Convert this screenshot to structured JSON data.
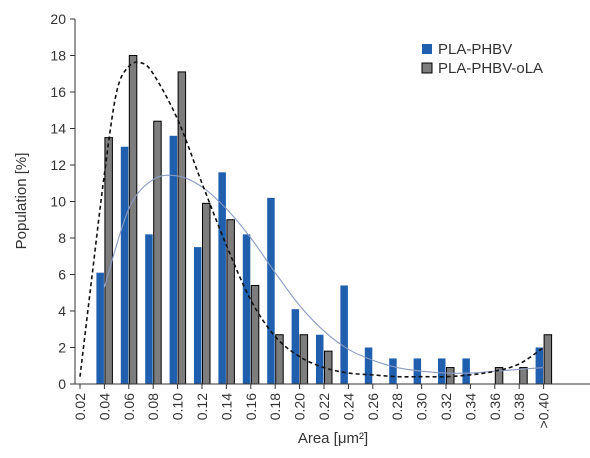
{
  "chart_data": {
    "type": "bar",
    "xlabel": "Area [μm²]",
    "ylabel": "Population [%]",
    "ylim": [
      0,
      20
    ],
    "y_ticks": [
      0,
      2,
      4,
      6,
      8,
      10,
      12,
      14,
      16,
      18,
      20
    ],
    "categories": [
      "0.02",
      "0.04",
      "0.06",
      "0.08",
      "0.10",
      "0.12",
      "0.14",
      "0.16",
      "0.18",
      "0.20",
      "0.22",
      "0.24",
      "0.26",
      "0.28",
      "0.30",
      "0.32",
      "0.34",
      "0.36",
      "0.38",
      ">0.40"
    ],
    "series": [
      {
        "name": "PLA-PHBV",
        "color": "#1f5fae",
        "values": [
          0,
          6.1,
          13.0,
          8.2,
          13.6,
          7.5,
          11.6,
          8.2,
          10.2,
          4.1,
          2.7,
          5.4,
          2.0,
          1.4,
          1.4,
          1.4,
          1.4,
          0,
          0,
          2.0
        ]
      },
      {
        "name": "PLA-PHBV-oLA",
        "color": "#7d7d7d",
        "values": [
          0,
          13.5,
          18.0,
          14.4,
          17.1,
          9.9,
          9.0,
          5.4,
          2.7,
          2.7,
          1.8,
          0,
          0,
          0,
          0,
          0.9,
          0,
          0.9,
          0.9,
          2.7
        ]
      }
    ],
    "fit_curves": [
      {
        "series": "PLA-PHBV",
        "style": "solid",
        "color": "#8a9bc4",
        "points": [
          [
            0.04,
            5.3
          ],
          [
            0.06,
            9.6
          ],
          [
            0.08,
            11.2
          ],
          [
            0.1,
            11.4
          ],
          [
            0.12,
            10.8
          ],
          [
            0.14,
            9.6
          ],
          [
            0.16,
            8.0
          ],
          [
            0.18,
            6.1
          ],
          [
            0.2,
            4.3
          ],
          [
            0.22,
            2.9
          ],
          [
            0.24,
            1.9
          ],
          [
            0.26,
            1.3
          ],
          [
            0.28,
            0.9
          ],
          [
            0.3,
            0.7
          ],
          [
            0.32,
            0.6
          ],
          [
            0.34,
            0.6
          ],
          [
            0.36,
            0.7
          ],
          [
            0.38,
            0.8
          ],
          [
            0.4,
            0.9
          ]
        ]
      },
      {
        "series": "PLA-PHBV-oLA",
        "style": "dashed",
        "color": "#111111",
        "points": [
          [
            0.02,
            0.4
          ],
          [
            0.03,
            6.0
          ],
          [
            0.04,
            11.5
          ],
          [
            0.05,
            16.0
          ],
          [
            0.06,
            17.4
          ],
          [
            0.07,
            17.6
          ],
          [
            0.08,
            17.0
          ],
          [
            0.1,
            14.5
          ],
          [
            0.12,
            11.0
          ],
          [
            0.14,
            7.6
          ],
          [
            0.16,
            4.6
          ],
          [
            0.18,
            2.6
          ],
          [
            0.2,
            1.5
          ],
          [
            0.22,
            0.9
          ],
          [
            0.24,
            0.6
          ],
          [
            0.26,
            0.5
          ],
          [
            0.28,
            0.4
          ],
          [
            0.3,
            0.4
          ],
          [
            0.32,
            0.4
          ],
          [
            0.34,
            0.5
          ],
          [
            0.36,
            0.7
          ],
          [
            0.38,
            1.1
          ],
          [
            0.4,
            2.0
          ]
        ]
      }
    ],
    "legend_position": "top-right",
    "grid": false
  }
}
